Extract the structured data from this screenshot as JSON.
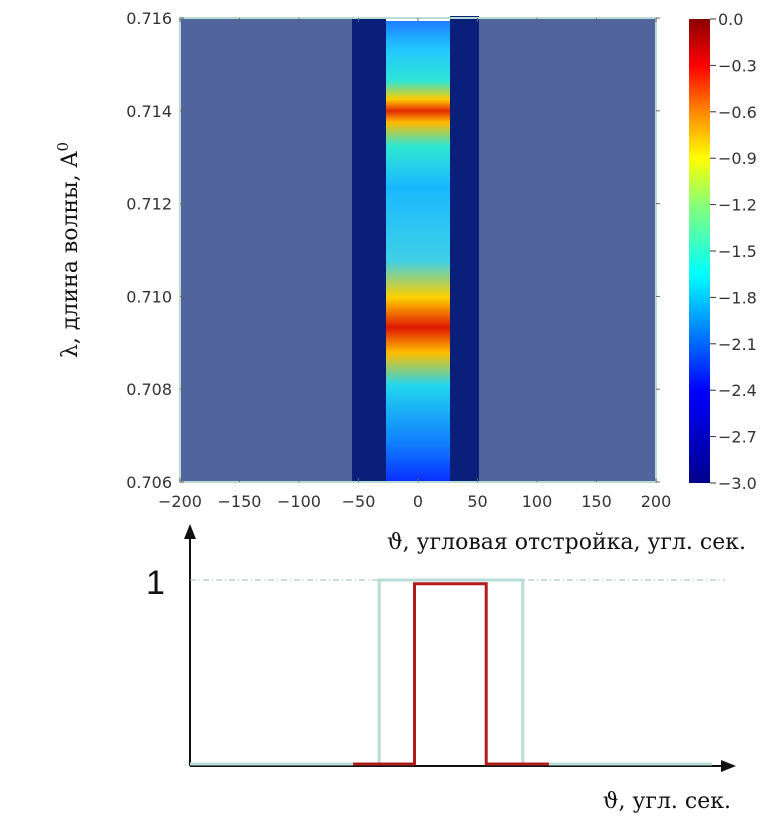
{
  "chart_data": [
    {
      "type": "heatmap",
      "title": "",
      "xlabel": "ϑ, угловая отстройка, угл. сек.",
      "ylabel": "λ, длина волны, A",
      "ylabel_superscript": "0",
      "xlim": [
        -200,
        200
      ],
      "ylim": [
        0.706,
        0.716
      ],
      "x_ticks": [
        "−200",
        "−150",
        "−100",
        "−50",
        "0",
        "50",
        "100",
        "150",
        "200"
      ],
      "x_tick_values": [
        -200,
        -150,
        -100,
        -50,
        0,
        50,
        100,
        150,
        200
      ],
      "y_ticks": [
        "0.706",
        "0.708",
        "0.710",
        "0.712",
        "0.714",
        "0.716"
      ],
      "y_tick_values": [
        0.706,
        0.708,
        0.71,
        0.712,
        0.714,
        0.716
      ],
      "colorbar": {
        "range": [
          -3.0,
          0.0
        ],
        "colormap": "jet",
        "tick_labels": [
          "0.0",
          "−0.3",
          "−0.6",
          "−0.9",
          "−1.2",
          "−1.5",
          "−1.8",
          "−2.1",
          "−2.4",
          "−2.7",
          "−3.0"
        ],
        "tick_values": [
          0.0,
          -0.3,
          -0.6,
          -0.9,
          -1.2,
          -1.5,
          -1.8,
          -2.1,
          -2.4,
          -2.7,
          -3.0
        ]
      },
      "regions": [
        {
          "x_range": [
            -200,
            -55
          ],
          "value_note": "uniform",
          "color": "#52649e"
        },
        {
          "x_range": [
            -55,
            -28
          ],
          "value": -3.0,
          "color": "#0a1f7a"
        },
        {
          "x_range": [
            -28,
            27
          ],
          "profile": "gradient",
          "peaks_lambda": [
            0.714,
            0.7093
          ]
        },
        {
          "x_range": [
            27,
            50
          ],
          "value": -3.0,
          "color": "#0a1f7a"
        },
        {
          "x_range": [
            50,
            200
          ],
          "value_note": "uniform",
          "color": "#52649e"
        }
      ]
    },
    {
      "type": "line",
      "title": "",
      "xlabel": "ϑ, угл. сек.",
      "ylabel": "",
      "y_tick_labels": [
        "1"
      ],
      "series": [
        {
          "x": [
            -200,
            -55,
            -55,
            55,
            55,
            200
          ],
          "y": [
            0,
            0,
            1,
            1,
            0,
            0
          ],
          "color": "#b9ddd6"
        },
        {
          "x": [
            -75,
            -28,
            -28,
            27,
            27,
            75
          ],
          "y": [
            0,
            0,
            0.98,
            0.98,
            0,
            0
          ],
          "color": "#b01c1c"
        }
      ]
    }
  ]
}
